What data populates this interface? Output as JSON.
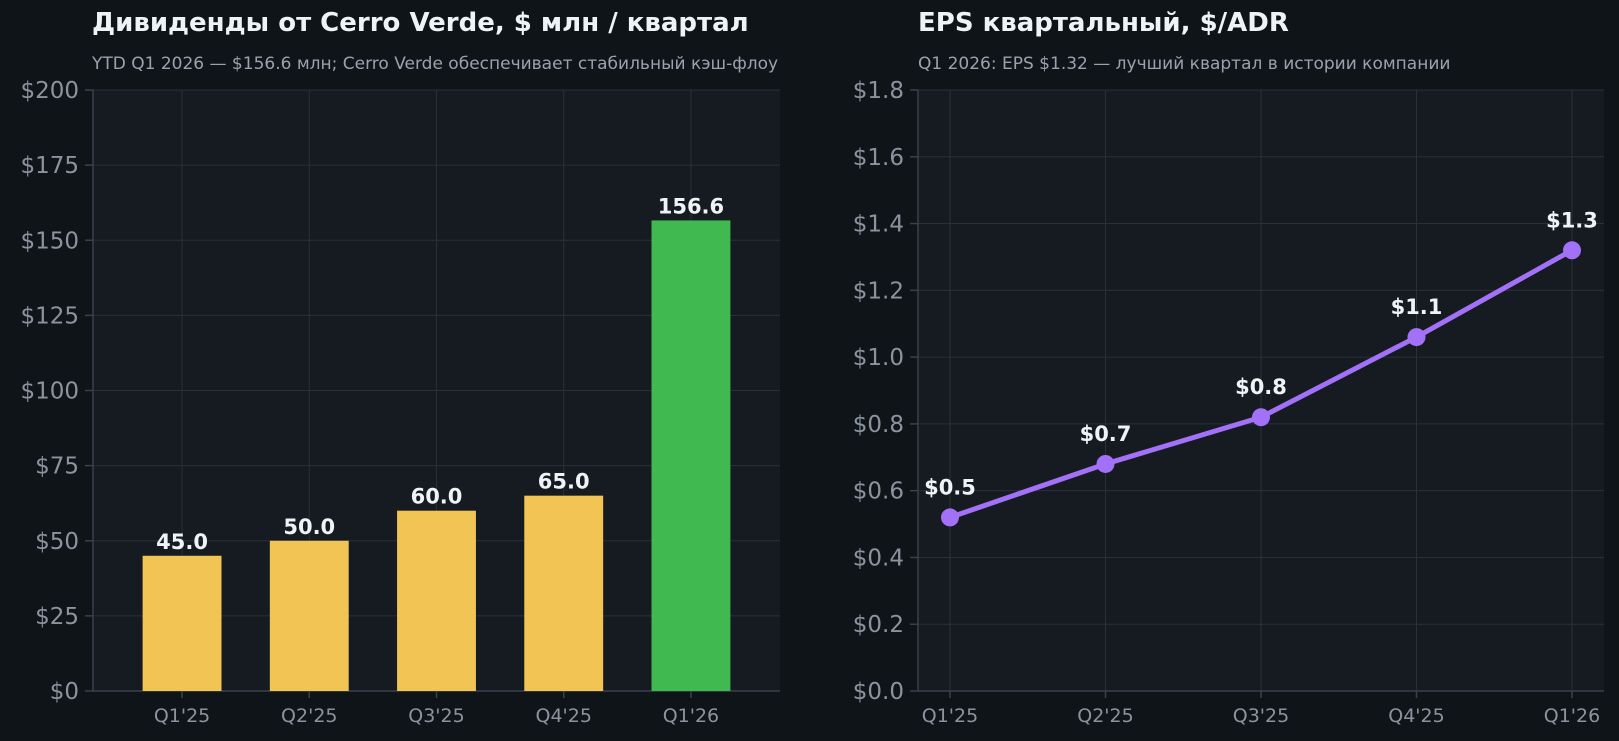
{
  "chart_data": [
    {
      "type": "bar",
      "title": "Дивиденды от Cerro Verde, $ млн / квартал",
      "subtitle": "YTD Q1 2026 — $156.6 млн; Cerro Verde обеспечивает стабильный кэш-флоу",
      "categories": [
        "Q1'25",
        "Q2'25",
        "Q3'25",
        "Q4'25",
        "Q1'26"
      ],
      "values": [
        45.0,
        50.0,
        60.0,
        65.0,
        156.6
      ],
      "value_labels": [
        "45.0",
        "50.0",
        "60.0",
        "65.0",
        "156.6"
      ],
      "bar_colors": [
        "#f2c453",
        "#f2c453",
        "#f2c453",
        "#f2c453",
        "#3fb950"
      ],
      "ylim": [
        0,
        200
      ],
      "yticks": [
        0,
        25,
        50,
        75,
        100,
        125,
        150,
        175,
        200
      ],
      "ytick_labels": [
        "$0",
        "$25",
        "$50",
        "$75",
        "$100",
        "$125",
        "$150",
        "$175",
        "$200"
      ],
      "xlabel": "",
      "ylabel": "",
      "grid": true
    },
    {
      "type": "line",
      "title": "EPS квартальный, $/ADR",
      "subtitle": "Q1 2026: EPS $1.32 — лучший квартал в истории компании",
      "categories": [
        "Q1'25",
        "Q2'25",
        "Q3'25",
        "Q4'25",
        "Q1'26"
      ],
      "values": [
        0.52,
        0.68,
        0.82,
        1.06,
        1.32
      ],
      "value_labels": [
        "$0.5",
        "$0.7",
        "$0.8",
        "$1.1",
        "$1.3"
      ],
      "line_color": "#a371f7",
      "ylim": [
        0,
        1.8
      ],
      "yticks": [
        0,
        0.2,
        0.4,
        0.6,
        0.8,
        1.0,
        1.2,
        1.4,
        1.6,
        1.8
      ],
      "ytick_labels": [
        "$0.0",
        "$0.2",
        "$0.4",
        "$0.6",
        "$0.8",
        "$1.0",
        "$1.2",
        "$1.4",
        "$1.6",
        "$1.8"
      ],
      "xlabel": "",
      "ylabel": "",
      "grid": true
    }
  ],
  "colors": {
    "background": "#0f1419",
    "plot_background": "#161b22",
    "text": "#f0f3f6",
    "muted": "#8b949e"
  }
}
